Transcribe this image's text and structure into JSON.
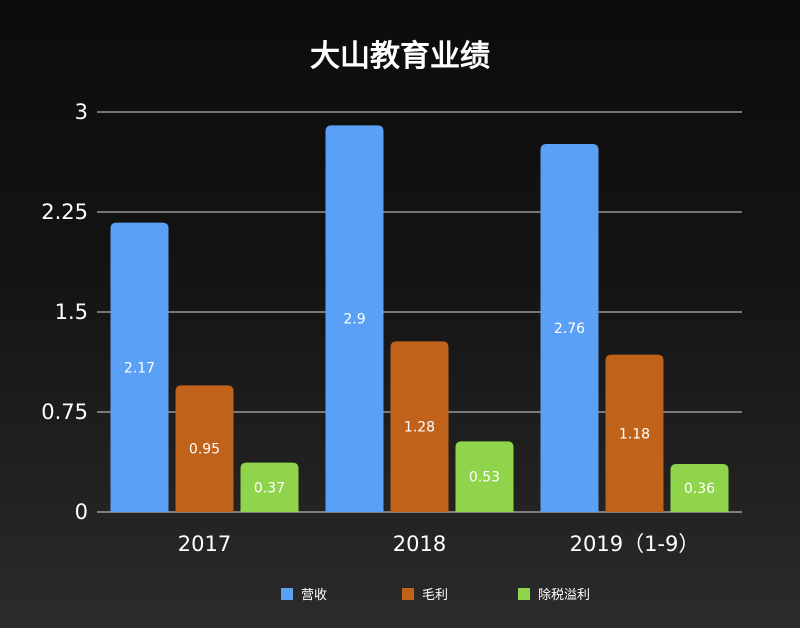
{
  "chart_data": {
    "type": "bar",
    "title": "大山教育业绩",
    "categories": [
      "2017",
      "2018",
      "2019（1-9）"
    ],
    "series": [
      {
        "name": "营收",
        "color": "#5aa0f5",
        "values": [
          2.17,
          2.9,
          2.76
        ]
      },
      {
        "name": "毛利",
        "color": "#c0621a",
        "values": [
          0.95,
          1.28,
          1.18
        ]
      },
      {
        "name": "除税溢利",
        "color": "#8fd44a",
        "values": [
          0.37,
          0.53,
          0.36
        ]
      }
    ],
    "y_ticks": [
      "0",
      "0.75",
      "1.5",
      "2.25",
      "3"
    ],
    "ylim": [
      0,
      3
    ],
    "grid": true,
    "legend_position": "bottom"
  }
}
